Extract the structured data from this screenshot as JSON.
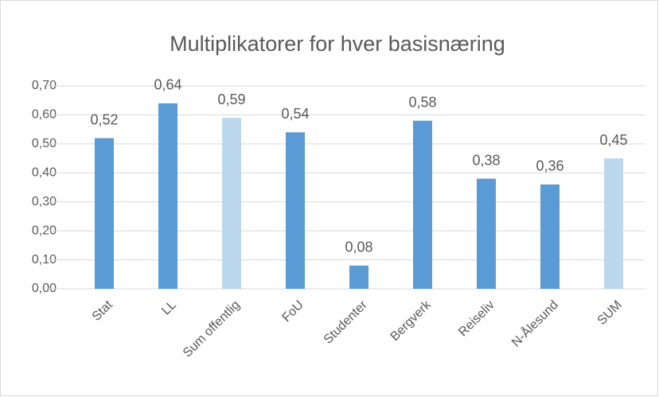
{
  "chart_data": {
    "type": "bar",
    "title": "Multiplikatorer for hver basisnæring",
    "categories": [
      "Stat",
      "LL",
      "Sum offentlig",
      "FoU",
      "Studenter",
      "Bergverk",
      "Reiseliv",
      "N-Ålesund",
      "SUM"
    ],
    "values": [
      0.52,
      0.64,
      0.59,
      0.54,
      0.08,
      0.58,
      0.38,
      0.36,
      0.45
    ],
    "value_labels": [
      "0,52",
      "0,64",
      "0,59",
      "0,54",
      "0,08",
      "0,58",
      "0,38",
      "0,36",
      "0,45"
    ],
    "colors": [
      "#5b9bd5",
      "#5b9bd5",
      "#bdd7ee",
      "#5b9bd5",
      "#5b9bd5",
      "#5b9bd5",
      "#5b9bd5",
      "#5b9bd5",
      "#bdd7ee"
    ],
    "ylim": [
      0,
      0.7
    ],
    "yticks": [
      {
        "value": 0,
        "label": "0,00"
      },
      {
        "value": 0.1,
        "label": "0,10"
      },
      {
        "value": 0.2,
        "label": "0,20"
      },
      {
        "value": 0.3,
        "label": "0,30"
      },
      {
        "value": 0.4,
        "label": "0,40"
      },
      {
        "value": 0.5,
        "label": "0,50"
      },
      {
        "value": 0.6,
        "label": "0,60"
      },
      {
        "value": 0.7,
        "label": "0,70"
      }
    ],
    "grid": true
  }
}
